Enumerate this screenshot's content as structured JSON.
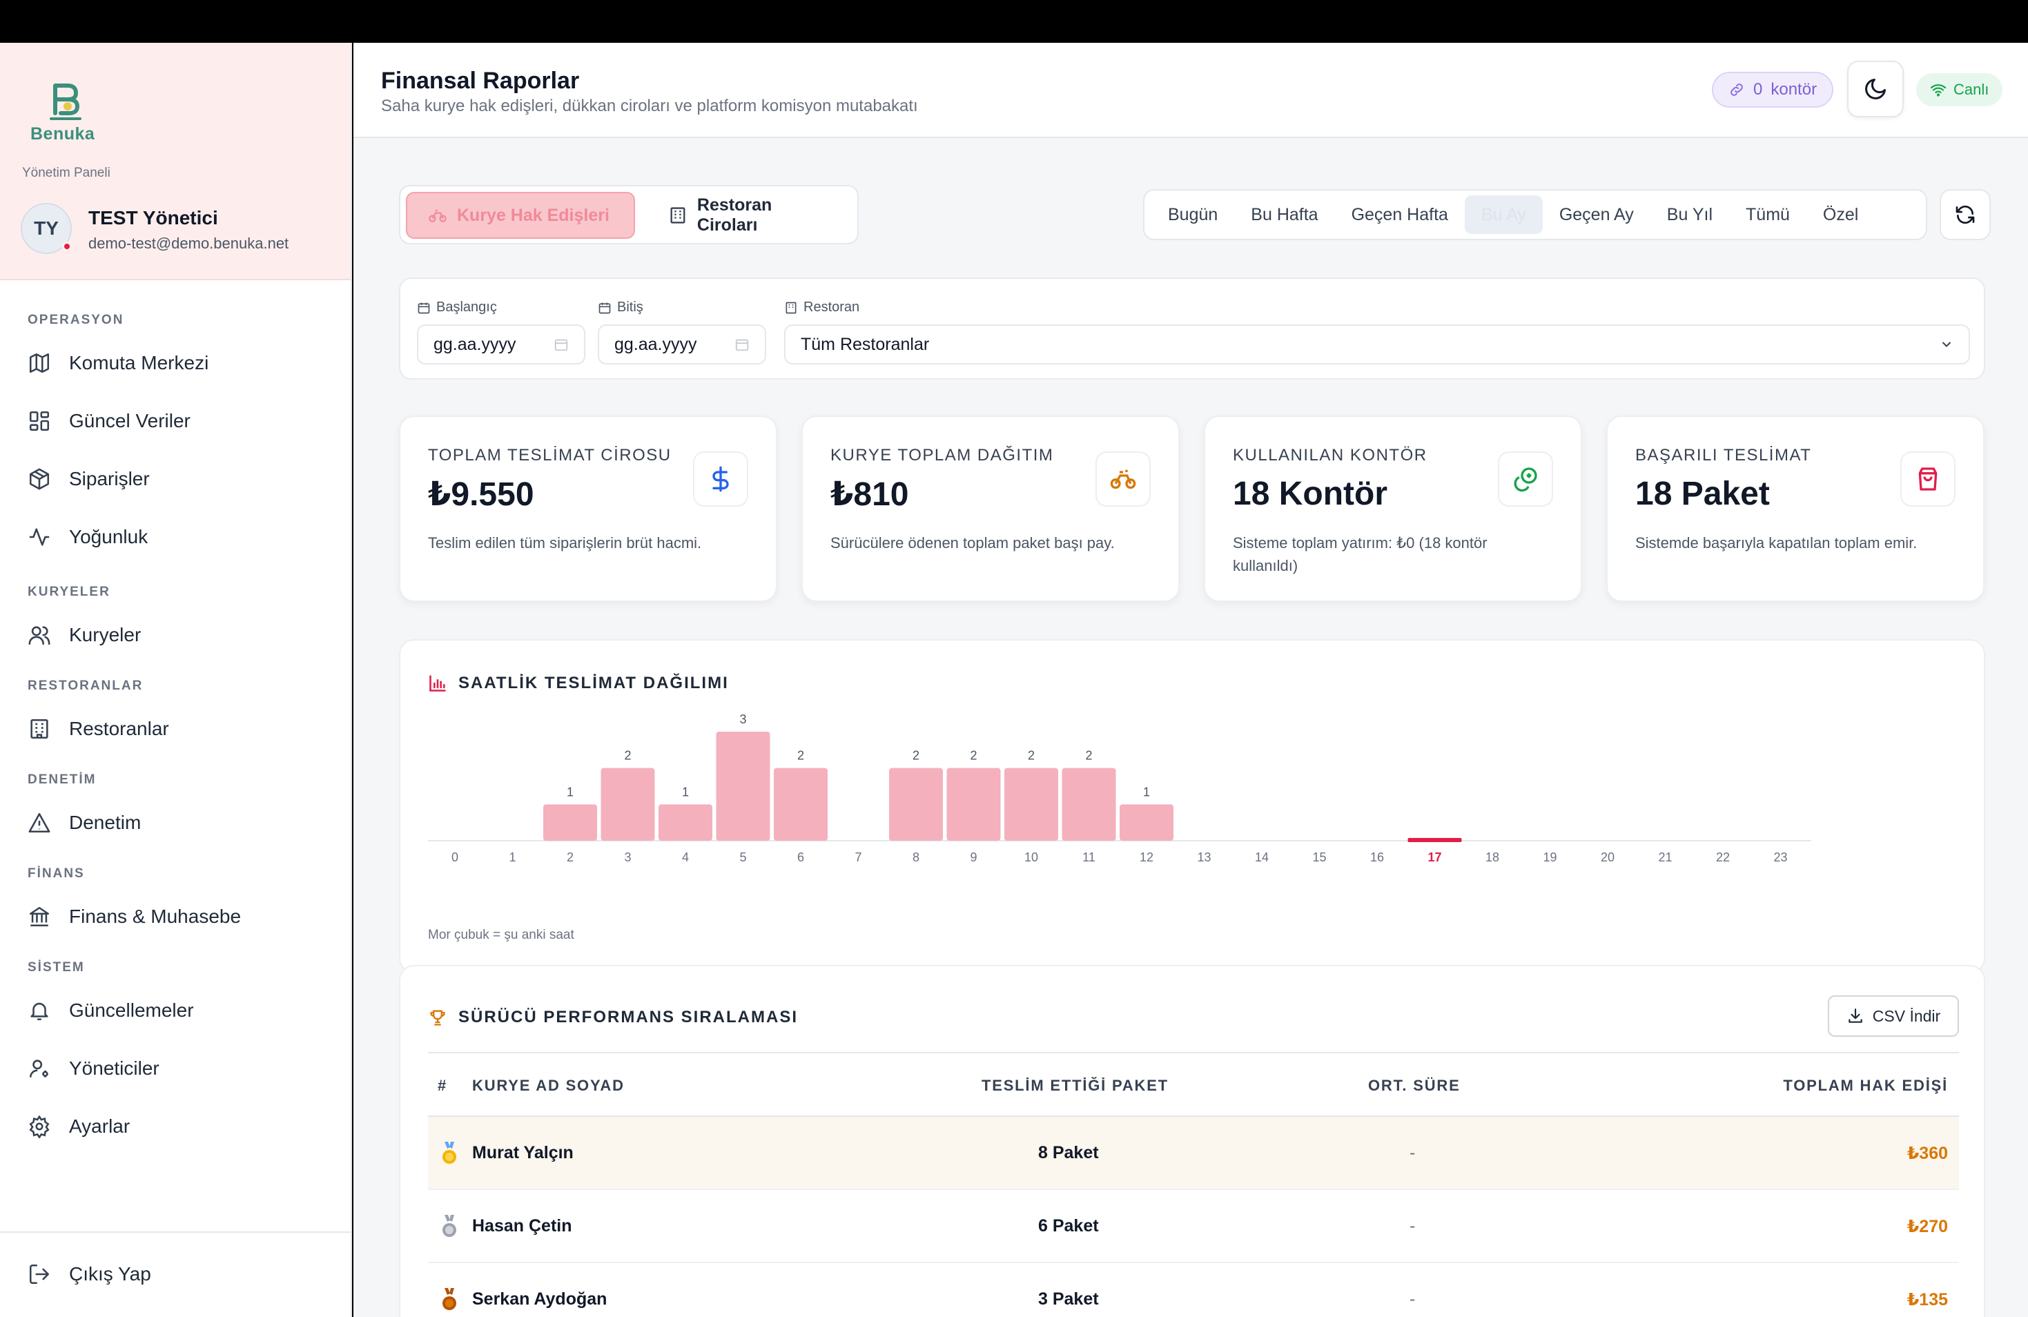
{
  "brand": {
    "name": "Benuka",
    "panel_label": "Yönetim Paneli"
  },
  "user": {
    "initials": "TY",
    "name": "TEST Yönetici",
    "email": "demo-test@demo.benuka.net"
  },
  "nav": {
    "operasyon": {
      "title": "OPERASYON",
      "items": [
        "Komuta Merkezi",
        "Güncel Veriler",
        "Siparişler",
        "Yoğunluk"
      ]
    },
    "kuryeler": {
      "title": "KURYELER",
      "items": [
        "Kuryeler"
      ]
    },
    "restoranlar": {
      "title": "RESTORANLAR",
      "items": [
        "Restoranlar"
      ]
    },
    "denetim": {
      "title": "DENETİM",
      "items": [
        "Denetim"
      ]
    },
    "finans": {
      "title": "FİNANS",
      "items": [
        "Finans & Muhasebe"
      ]
    },
    "sistem": {
      "title": "SİSTEM",
      "items": [
        "Güncellemeler",
        "Yöneticiler",
        "Ayarlar"
      ]
    },
    "logout": "Çıkış Yap"
  },
  "header": {
    "title": "Finansal Raporlar",
    "subtitle": "Saha kurye hak edişleri, dükkan ciroları ve platform komisyon mutabakatı",
    "kontor_count": "0",
    "kontor_label": "kontör",
    "live_label": "Canlı"
  },
  "tabs": {
    "active": "Kurye Hak Edişleri",
    "other": "Restoran Ciroları"
  },
  "periods": [
    "Bugün",
    "Bu Hafta",
    "Geçen Hafta",
    "Bu Ay",
    "Geçen Ay",
    "Bu Yıl",
    "Tümü",
    "Özel"
  ],
  "active_period": "Bu Ay",
  "filters": {
    "start_label": "Başlangıç",
    "start_value": "gg.aa.yyyy",
    "end_label": "Bitiş",
    "end_value": "gg.aa.yyyy",
    "restaurant_label": "Restoran",
    "restaurant_value": "Tüm Restoranlar"
  },
  "stats": [
    {
      "label": "TOPLAM TESLİMAT CİROSU",
      "value": "₺9.550",
      "desc": "Teslim edilen tüm siparişlerin brüt hacmi.",
      "icon": "dollar-icon",
      "color": "#2563eb"
    },
    {
      "label": "KURYE TOPLAM DAĞITIM",
      "value": "₺810",
      "desc": "Sürücülere ödenen toplam paket başı pay.",
      "icon": "bicycle-icon",
      "color": "#d97706"
    },
    {
      "label": "KULLANILAN KONTÖR",
      "value": "18 Kontör",
      "desc": "Sisteme toplam yatırım: ₺0 (18 kontör kullanıldı)",
      "icon": "coins-icon",
      "color": "#16a34a"
    },
    {
      "label": "BAŞARILI TESLİMAT",
      "value": "18 Paket",
      "desc": "Sistemde başarıyla kapatılan toplam emir.",
      "icon": "shopping-bag-icon",
      "color": "#e11d48"
    }
  ],
  "chart_data": {
    "type": "bar",
    "title": "SAATLİK TESLİMAT DAĞILIMI",
    "categories": [
      "0",
      "1",
      "2",
      "3",
      "4",
      "5",
      "6",
      "7",
      "8",
      "9",
      "10",
      "11",
      "12",
      "13",
      "14",
      "15",
      "16",
      "17",
      "18",
      "19",
      "20",
      "21",
      "22",
      "23"
    ],
    "values": [
      0,
      0,
      1,
      2,
      1,
      3,
      2,
      0,
      2,
      2,
      2,
      2,
      1,
      0,
      0,
      0,
      0,
      0,
      0,
      0,
      0,
      0,
      0,
      0
    ],
    "current_hour": "17",
    "note": "Mor çubuk = şu anki saat",
    "bar_color": "#f4b0bd",
    "highlight_color": "#e11d48"
  },
  "performance": {
    "title": "SÜRÜCÜ PERFORMANS SIRALAMASI",
    "csv_label": "CSV İndir",
    "columns": [
      "#",
      "KURYE AD SOYAD",
      "TESLİM ETTİĞİ PAKET",
      "ORT. SÜRE",
      "TOPLAM HAK EDİŞİ"
    ],
    "rows": [
      {
        "medal": "gold-medal-icon",
        "name": "Murat Yalçın",
        "packages": "8 Paket",
        "avg": "-",
        "total": "₺360"
      },
      {
        "medal": "silver-medal-icon",
        "name": "Hasan Çetin",
        "packages": "6 Paket",
        "avg": "-",
        "total": "₺270"
      },
      {
        "medal": "bronze-medal-icon",
        "name": "Serkan Aydoğan",
        "packages": "3 Paket",
        "avg": "-",
        "total": "₺135"
      }
    ]
  }
}
